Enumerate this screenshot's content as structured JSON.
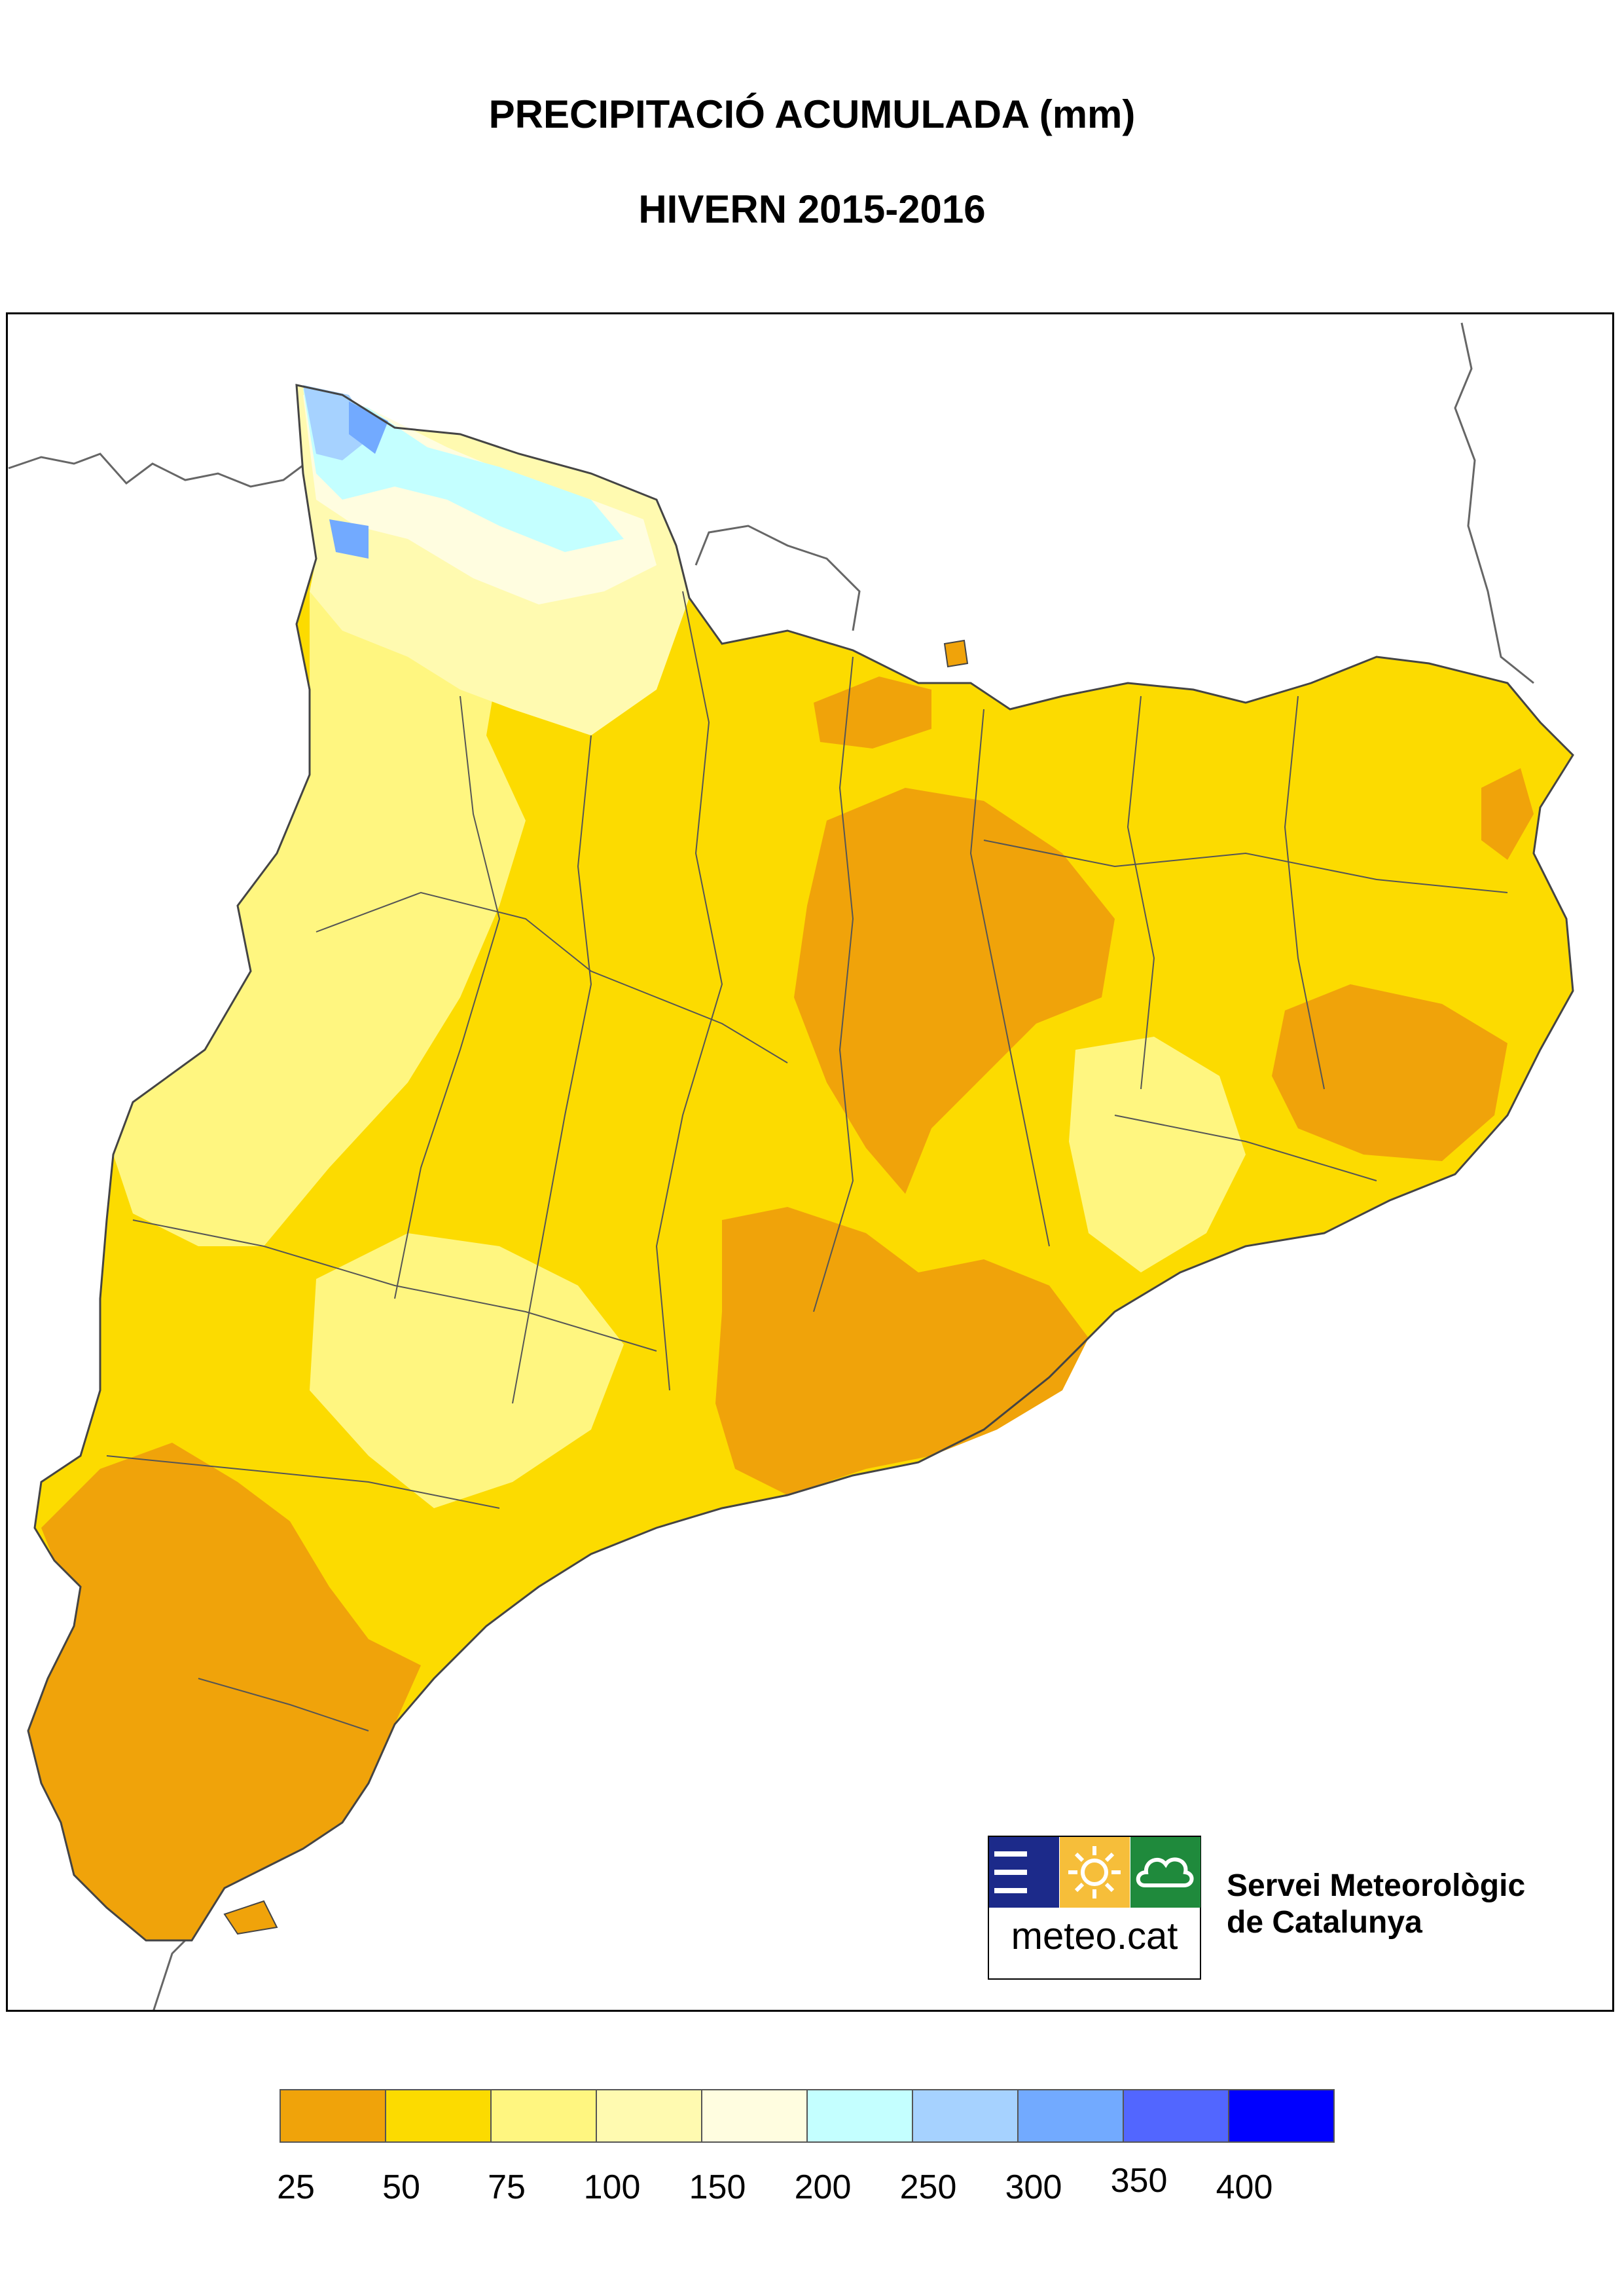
{
  "title": {
    "line1": "PRECIPITACIÓ ACUMULADA (mm)",
    "line2": "HIVERN 2015-2016"
  },
  "logo": {
    "text": "meteo.cat",
    "icons": [
      "waves-icon",
      "sun-icon",
      "cloud-icon"
    ],
    "colors": [
      "#1c2a8a",
      "#f6be3a",
      "#1f8a3c"
    ]
  },
  "organization": {
    "line1": "Servei Meteorològic",
    "line2": "de Catalunya"
  },
  "legend": {
    "colors": [
      "#f0a30a",
      "#fcdb00",
      "#fff680",
      "#fffab0",
      "#fffde0",
      "#c4ffff",
      "#a6d2ff",
      "#72aaff",
      "#5266ff",
      "#0000ff"
    ],
    "labels": [
      "25",
      "50",
      "75",
      "100",
      "150",
      "200",
      "250",
      "300",
      "350",
      "400"
    ]
  }
}
